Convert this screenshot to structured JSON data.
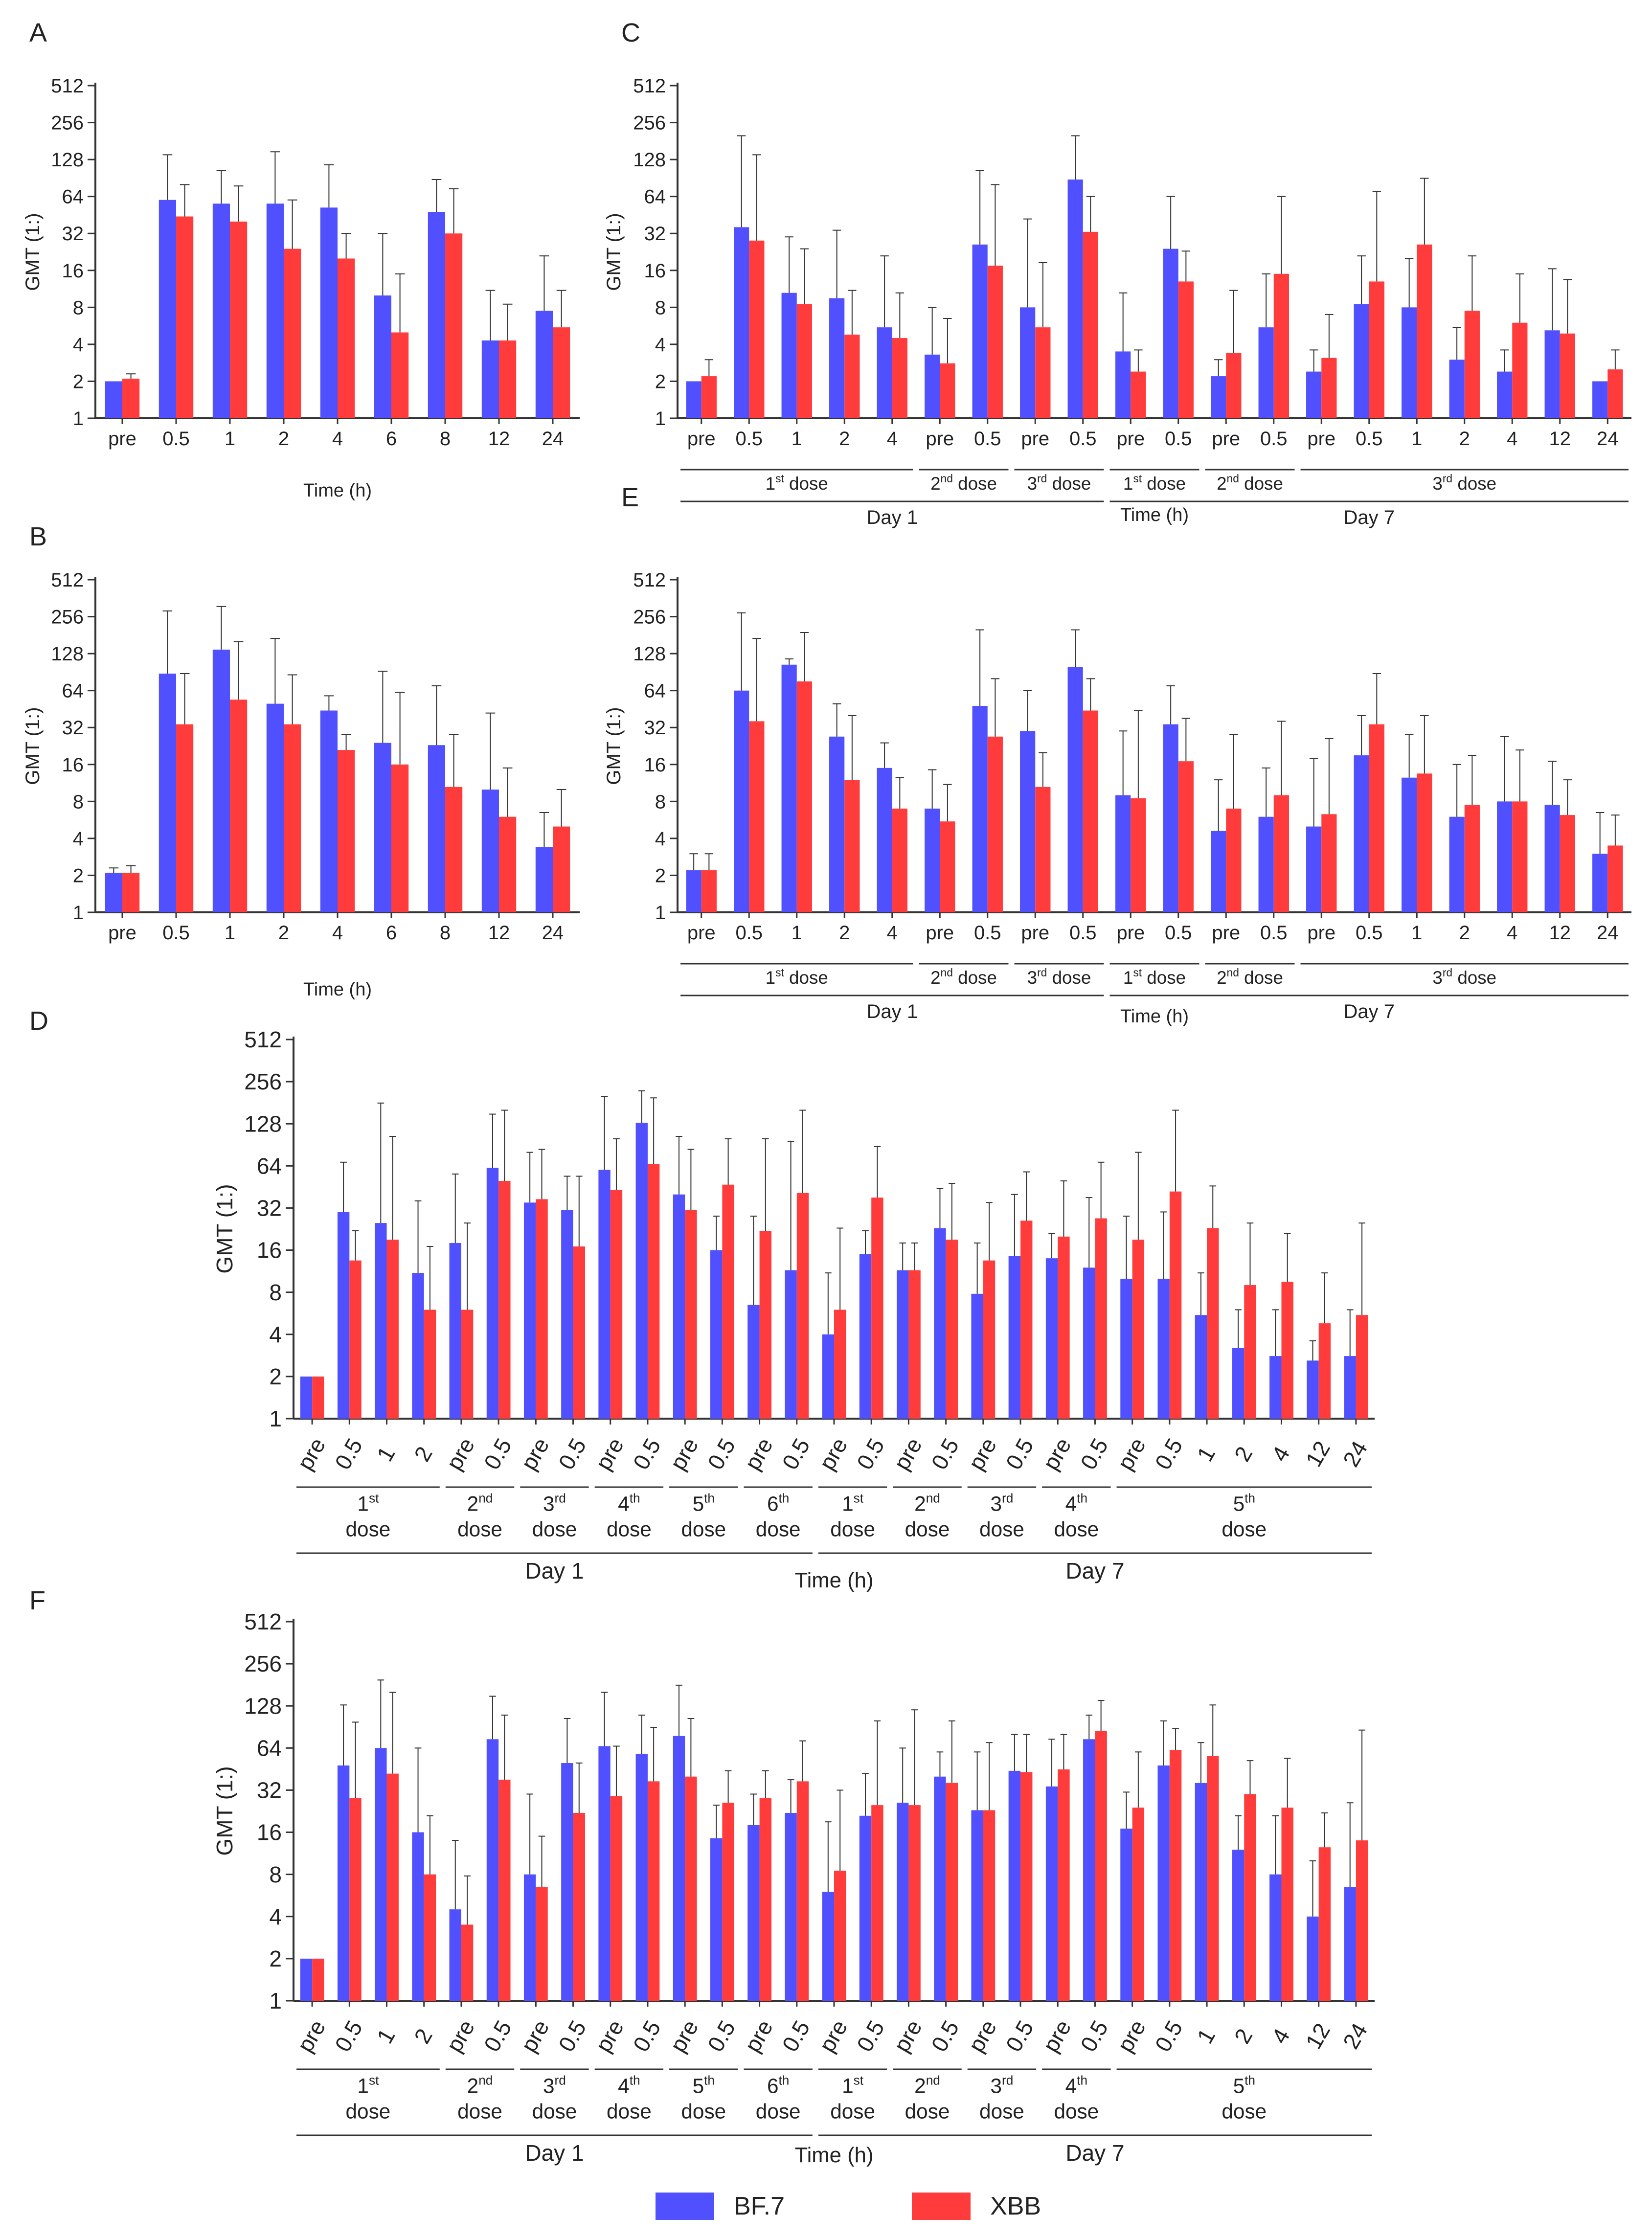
{
  "colors": {
    "bf7": "#5050ff",
    "xbb": "#ff3b3b",
    "axis": "#333333",
    "text": "#222222"
  },
  "legend": [
    {
      "name": "BF.7",
      "color": "#5050ff"
    },
    {
      "name": "XBB",
      "color": "#ff3b3b"
    }
  ],
  "chart_data": [
    {
      "panel": "A",
      "type": "bar",
      "ylabel": "GMT (1:)",
      "xlabel": "Time (h)",
      "yscale": "log2",
      "ylim": [
        1,
        512
      ],
      "yticks": [
        "1",
        "2",
        "4",
        "8",
        "16",
        "32",
        "64",
        "128",
        "256",
        "512"
      ],
      "categories": [
        "pre",
        "0.5",
        "1",
        "2",
        "4",
        "6",
        "8",
        "12",
        "24"
      ],
      "series": [
        {
          "name": "BF.7",
          "values": [
            2,
            60,
            56,
            56,
            52,
            10,
            48,
            4.3,
            7.5
          ],
          "err_upper": [
            2,
            140,
            104,
            148,
            116,
            32,
            88,
            11,
            21
          ]
        },
        {
          "name": "XBB",
          "values": [
            2.1,
            44,
            40,
            24,
            20,
            5,
            32,
            4.3,
            5.5
          ],
          "err_upper": [
            2.3,
            80,
            78,
            60,
            32,
            15,
            74,
            8.5,
            11
          ]
        }
      ],
      "groups": [],
      "top_groups": []
    },
    {
      "panel": "B",
      "type": "bar",
      "ylabel": "GMT (1:)",
      "xlabel": "Time (h)",
      "yscale": "log2",
      "ylim": [
        1,
        512
      ],
      "yticks": [
        "1",
        "2",
        "4",
        "8",
        "16",
        "32",
        "64",
        "128",
        "256",
        "512"
      ],
      "categories": [
        "pre",
        "0.5",
        "1",
        "2",
        "4",
        "6",
        "8",
        "12",
        "24"
      ],
      "series": [
        {
          "name": "BF.7",
          "values": [
            2.1,
            88,
            138,
            50,
            44,
            24,
            23,
            10,
            3.4
          ],
          "err_upper": [
            2.3,
            285,
            310,
            170,
            58,
            92,
            70,
            42,
            6.5
          ]
        },
        {
          "name": "XBB",
          "values": [
            2.1,
            34,
            54,
            34,
            21,
            16,
            10.5,
            6,
            5
          ],
          "err_upper": [
            2.4,
            88,
            160,
            86,
            28,
            62,
            28,
            15,
            10
          ]
        }
      ],
      "groups": [],
      "top_groups": []
    },
    {
      "panel": "C",
      "type": "bar",
      "ylabel": "GMT (1:)",
      "xlabel": "Time (h)",
      "yscale": "log2",
      "ylim": [
        1,
        512
      ],
      "yticks": [
        "1",
        "2",
        "4",
        "8",
        "16",
        "32",
        "64",
        "128",
        "256",
        "512"
      ],
      "categories": [
        "pre",
        "0.5",
        "1",
        "2",
        "4",
        "pre",
        "0.5",
        "pre",
        "0.5",
        "pre",
        "0.5",
        "pre",
        "0.5",
        "pre",
        "0.5",
        "1",
        "2",
        "4",
        "12",
        "24"
      ],
      "series": [
        {
          "name": "BF.7",
          "values": [
            2,
            36,
            10.5,
            9.5,
            5.5,
            3.3,
            26,
            8,
            88,
            3.5,
            24,
            2.2,
            5.5,
            2.4,
            8.5,
            8,
            3,
            2.4,
            5.2,
            2
          ],
          "err_upper": [
            2,
            200,
            30,
            34,
            21,
            8,
            104,
            42,
            200,
            10.5,
            64,
            3,
            15,
            3.6,
            21,
            20,
            5.5,
            3.6,
            16.5,
            2
          ]
        },
        {
          "name": "XBB",
          "values": [
            2.2,
            28,
            8.5,
            4.8,
            4.5,
            2.8,
            17.5,
            5.5,
            33,
            2.4,
            13,
            3.4,
            15,
            3.1,
            13,
            26,
            7.5,
            6,
            4.9,
            2.5
          ],
          "err_upper": [
            3,
            140,
            24,
            11,
            10.5,
            6.5,
            80,
            18.5,
            64,
            3.6,
            23,
            11,
            64,
            7,
            70,
            90,
            21,
            15,
            13.5,
            3.6
          ]
        }
      ],
      "groups": [
        {
          "label": "1",
          "sup": "st",
          "text": " dose",
          "from": 0,
          "to": 4
        },
        {
          "label": "2",
          "sup": "nd",
          "text": " dose",
          "from": 5,
          "to": 6
        },
        {
          "label": "3",
          "sup": "rd",
          "text": " dose",
          "from": 7,
          "to": 8
        },
        {
          "label": "1",
          "sup": "st",
          "text": " dose",
          "from": 9,
          "to": 10
        },
        {
          "label": "2",
          "sup": "nd",
          "text": " dose",
          "from": 11,
          "to": 12
        },
        {
          "label": "3",
          "sup": "rd",
          "text": " dose",
          "from": 13,
          "to": 19
        }
      ],
      "top_groups": [
        {
          "label": "Day 1",
          "from": 0,
          "to": 8
        },
        {
          "label": "Day 7",
          "from": 9,
          "to": 19
        }
      ]
    },
    {
      "panel": "E",
      "type": "bar",
      "ylabel": "GMT (1:)",
      "xlabel": "Time (h)",
      "yscale": "log2",
      "ylim": [
        1,
        512
      ],
      "yticks": [
        "1",
        "2",
        "4",
        "8",
        "16",
        "32",
        "64",
        "128",
        "256",
        "512"
      ],
      "categories": [
        "pre",
        "0.5",
        "1",
        "2",
        "4",
        "pre",
        "0.5",
        "pre",
        "0.5",
        "pre",
        "0.5",
        "pre",
        "0.5",
        "pre",
        "0.5",
        "1",
        "2",
        "4",
        "12",
        "24"
      ],
      "series": [
        {
          "name": "BF.7",
          "values": [
            2.2,
            64,
            104,
            27,
            15,
            7,
            48,
            30,
            100,
            9,
            34,
            4.6,
            6,
            5,
            19,
            12.5,
            6,
            8,
            7.5,
            3
          ],
          "err_upper": [
            3,
            275,
            116,
            50,
            24,
            14.5,
            200,
            64,
            200,
            30,
            70,
            12,
            15,
            18,
            40,
            28,
            16,
            27,
            17,
            6.5
          ]
        },
        {
          "name": "XBB",
          "values": [
            2.2,
            36,
            76,
            12,
            7,
            5.5,
            27,
            10.5,
            44,
            8.5,
            17,
            7,
            9,
            6.3,
            34,
            13.5,
            7.5,
            8,
            6.2,
            3.5
          ],
          "err_upper": [
            3,
            170,
            190,
            40,
            12.5,
            11,
            80,
            20,
            80,
            44,
            38,
            28,
            36,
            26,
            88,
            40,
            19,
            21,
            12,
            6.2
          ]
        }
      ],
      "groups": [
        {
          "label": "1",
          "sup": "st",
          "text": " dose",
          "from": 0,
          "to": 4
        },
        {
          "label": "2",
          "sup": "nd",
          "text": " dose",
          "from": 5,
          "to": 6
        },
        {
          "label": "3",
          "sup": "rd",
          "text": " dose",
          "from": 7,
          "to": 8
        },
        {
          "label": "1",
          "sup": "st",
          "text": " dose",
          "from": 9,
          "to": 10
        },
        {
          "label": "2",
          "sup": "nd",
          "text": " dose",
          "from": 11,
          "to": 12
        },
        {
          "label": "3",
          "sup": "rd",
          "text": " dose",
          "from": 13,
          "to": 19
        }
      ],
      "top_groups": [
        {
          "label": "Day 1",
          "from": 0,
          "to": 8
        },
        {
          "label": "Day 7",
          "from": 9,
          "to": 19
        }
      ]
    },
    {
      "panel": "D",
      "type": "bar",
      "ylabel": "GMT (1:)",
      "xlabel": "Time (h)",
      "yscale": "log2",
      "ylim": [
        1,
        512
      ],
      "yticks": [
        "1",
        "2",
        "4",
        "8",
        "16",
        "32",
        "64",
        "128",
        "256",
        "512"
      ],
      "categories": [
        "pre",
        "0.5",
        "1",
        "2",
        "pre",
        "0.5",
        "pre",
        "0.5",
        "pre",
        "0.5",
        "pre",
        "0.5",
        "pre",
        "0.5",
        "pre",
        "0.5",
        "pre",
        "0.5",
        "pre",
        "0.5",
        "pre",
        "0.5",
        "pre",
        "0.5",
        "1",
        "2",
        "4",
        "12",
        "24"
      ],
      "series": [
        {
          "name": "BF.7",
          "values": [
            2,
            30,
            25,
            11,
            18,
            62,
            35,
            31,
            60,
            130,
            40,
            16,
            6.5,
            11.5,
            4,
            15,
            11.5,
            23,
            7.8,
            14.5,
            14,
            12,
            10,
            10,
            5.5,
            3.2,
            2.8,
            2.6,
            2.8
          ],
          "err_upper": [
            2,
            68,
            180,
            36,
            56,
            150,
            80,
            54,
            200,
            220,
            104,
            28,
            28,
            96,
            11,
            22,
            18,
            44,
            18,
            40,
            21,
            38,
            28,
            30,
            11,
            6,
            6,
            3.6,
            6
          ]
        },
        {
          "name": "XBB",
          "values": [
            2,
            13.5,
            19,
            6,
            6,
            50,
            37,
            17,
            43,
            66,
            31,
            47,
            22,
            41,
            6,
            38,
            11.5,
            19,
            13.5,
            26,
            20,
            27,
            19,
            42,
            23,
            9,
            9.5,
            4.8,
            5.5
          ],
          "err_upper": [
            2,
            22,
            104,
            17,
            25,
            160,
            84,
            54,
            100,
            196,
            84,
            100,
            100,
            160,
            23,
            88,
            18,
            48,
            35,
            58,
            50,
            68,
            80,
            160,
            46,
            25,
            21,
            11,
            25
          ]
        }
      ],
      "groups": [
        {
          "label": "1",
          "sup": "st",
          "text": "dose",
          "from": 0,
          "to": 3
        },
        {
          "label": "2",
          "sup": "nd",
          "text": "dose",
          "from": 4,
          "to": 5
        },
        {
          "label": "3",
          "sup": "rd",
          "text": "dose",
          "from": 6,
          "to": 7
        },
        {
          "label": "4",
          "sup": "th",
          "text": "dose",
          "from": 8,
          "to": 9
        },
        {
          "label": "5",
          "sup": "th",
          "text": "dose",
          "from": 10,
          "to": 11
        },
        {
          "label": "6",
          "sup": "th",
          "text": "dose",
          "from": 12,
          "to": 13
        },
        {
          "label": "1",
          "sup": "st",
          "text": "dose",
          "from": 14,
          "to": 15
        },
        {
          "label": "2",
          "sup": "nd",
          "text": "dose",
          "from": 16,
          "to": 17
        },
        {
          "label": "3",
          "sup": "rd",
          "text": "dose",
          "from": 18,
          "to": 19
        },
        {
          "label": "4",
          "sup": "th",
          "text": "dose",
          "from": 20,
          "to": 21
        },
        {
          "label": "5",
          "sup": "th",
          "text": "dose",
          "from": 22,
          "to": 28
        }
      ],
      "top_groups": [
        {
          "label": "Day 1",
          "from": 0,
          "to": 13
        },
        {
          "label": "Day 7",
          "from": 14,
          "to": 28
        }
      ]
    },
    {
      "panel": "F",
      "type": "bar",
      "ylabel": "GMT (1:)",
      "xlabel": "Time (h)",
      "yscale": "log2",
      "ylim": [
        1,
        512
      ],
      "yticks": [
        "1",
        "2",
        "4",
        "8",
        "16",
        "32",
        "64",
        "128",
        "256",
        "512"
      ],
      "categories": [
        "pre",
        "0.5",
        "1",
        "2",
        "pre",
        "0.5",
        "pre",
        "0.5",
        "pre",
        "0.5",
        "pre",
        "0.5",
        "pre",
        "0.5",
        "pre",
        "0.5",
        "pre",
        "0.5",
        "pre",
        "0.5",
        "pre",
        "0.5",
        "pre",
        "0.5",
        "1",
        "2",
        "4",
        "12",
        "24"
      ],
      "series": [
        {
          "name": "BF.7",
          "values": [
            2,
            48,
            64,
            16,
            4.5,
            74,
            8,
            50,
            66,
            58,
            78,
            14.5,
            18,
            22,
            6,
            21,
            26,
            40,
            23,
            44,
            34,
            74,
            17,
            48,
            36,
            12,
            8,
            4,
            6.5
          ],
          "err_upper": [
            2,
            130,
            196,
            64,
            14,
            150,
            30,
            104,
            160,
            110,
            180,
            25,
            30,
            38,
            19,
            42,
            64,
            60,
            60,
            80,
            74,
            110,
            31,
            100,
            70,
            21,
            21,
            10,
            26
          ]
        },
        {
          "name": "XBB",
          "values": [
            2,
            28,
            42,
            8,
            3.5,
            38,
            6.5,
            22,
            29,
            37,
            40,
            26,
            28,
            37,
            8.5,
            25,
            25,
            36,
            23,
            43,
            45,
            85,
            24,
            62,
            56,
            30,
            24,
            12.5,
            14
          ],
          "err_upper": [
            2,
            98,
            160,
            21,
            7.8,
            110,
            15,
            50,
            66,
            90,
            104,
            44,
            44,
            72,
            32,
            100,
            120,
            100,
            70,
            80,
            80,
            140,
            60,
            88,
            130,
            52,
            54,
            22,
            86
          ]
        }
      ],
      "groups": [
        {
          "label": "1",
          "sup": "st",
          "text": "dose",
          "from": 0,
          "to": 3
        },
        {
          "label": "2",
          "sup": "nd",
          "text": "dose",
          "from": 4,
          "to": 5
        },
        {
          "label": "3",
          "sup": "rd",
          "text": "dose",
          "from": 6,
          "to": 7
        },
        {
          "label": "4",
          "sup": "th",
          "text": "dose",
          "from": 8,
          "to": 9
        },
        {
          "label": "5",
          "sup": "th",
          "text": "dose",
          "from": 10,
          "to": 11
        },
        {
          "label": "6",
          "sup": "th",
          "text": "dose",
          "from": 12,
          "to": 13
        },
        {
          "label": "1",
          "sup": "st",
          "text": "dose",
          "from": 14,
          "to": 15
        },
        {
          "label": "2",
          "sup": "nd",
          "text": "dose",
          "from": 16,
          "to": 17
        },
        {
          "label": "3",
          "sup": "rd",
          "text": "dose",
          "from": 18,
          "to": 19
        },
        {
          "label": "4",
          "sup": "th",
          "text": "dose",
          "from": 20,
          "to": 21
        },
        {
          "label": "5",
          "sup": "th",
          "text": "dose",
          "from": 22,
          "to": 28
        }
      ],
      "top_groups": [
        {
          "label": "Day 1",
          "from": 0,
          "to": 13
        },
        {
          "label": "Day 7",
          "from": 14,
          "to": 28
        }
      ]
    }
  ]
}
